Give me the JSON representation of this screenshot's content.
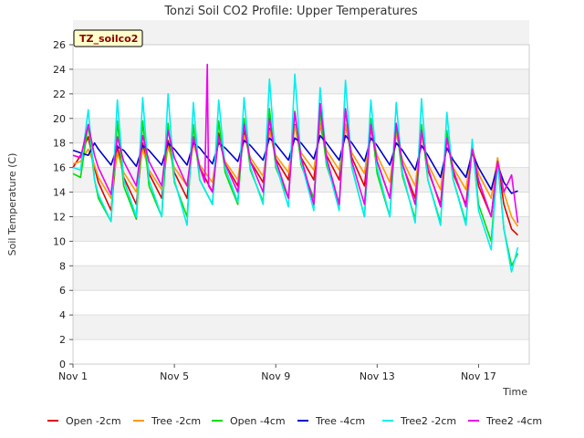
{
  "chart_data": {
    "type": "line",
    "title": "Tonzi Soil CO2 Profile: Upper Temperatures",
    "xlabel": "Time",
    "ylabel": "Soil Temperature (C)",
    "xlim": [
      0,
      18
    ],
    "ylim": [
      0,
      26
    ],
    "yticks": [
      0,
      2,
      4,
      6,
      8,
      10,
      12,
      14,
      16,
      18,
      20,
      22,
      24,
      26
    ],
    "xticks": [
      {
        "x": 0,
        "label": "Nov 1"
      },
      {
        "x": 4,
        "label": "Nov 5"
      },
      {
        "x": 8,
        "label": "Nov 9"
      },
      {
        "x": 12,
        "label": "Nov 13"
      },
      {
        "x": 16,
        "label": "Nov 17"
      }
    ],
    "x_unit": "days after Nov 1",
    "grid": true,
    "legend_position": "bottom",
    "site_tag": "TZ_soilco2",
    "series": [
      {
        "name": "Open -2cm",
        "color": "#e00000",
        "x": [
          0,
          0.3,
          0.6,
          0.85,
          1.0,
          1.5,
          1.75,
          2.0,
          2.5,
          2.75,
          3.0,
          3.5,
          3.75,
          4.0,
          4.5,
          4.75,
          5.0,
          5.5,
          5.75,
          6.0,
          6.5,
          6.75,
          7.0,
          7.5,
          7.75,
          8.0,
          8.5,
          8.75,
          9.0,
          9.5,
          9.75,
          10.0,
          10.5,
          10.75,
          11.0,
          11.5,
          11.75,
          12.0,
          12.5,
          12.75,
          13.0,
          13.5,
          13.75,
          14.0,
          14.5,
          14.75,
          15.0,
          15.5,
          15.75,
          16.0,
          16.5,
          16.75,
          17.0,
          17.3,
          17.55
        ],
        "y": [
          16.0,
          17.0,
          18.5,
          16.0,
          14.8,
          12.5,
          17.8,
          15.2,
          13.0,
          18.0,
          15.5,
          13.5,
          18.2,
          15.6,
          13.5,
          18.5,
          16.0,
          14.0,
          18.8,
          16.3,
          14.5,
          19.0,
          16.5,
          14.8,
          19.2,
          16.7,
          15.0,
          19.5,
          16.8,
          15.0,
          19.6,
          17.0,
          15.0,
          19.5,
          16.8,
          14.5,
          19.2,
          16.5,
          13.5,
          19.0,
          16.2,
          13.5,
          18.8,
          15.8,
          13.0,
          18.5,
          15.5,
          13.0,
          17.8,
          14.5,
          12.0,
          16.5,
          13.0,
          11.0,
          10.5
        ]
      },
      {
        "name": "Tree -2cm",
        "color": "#ff9900",
        "x": [
          0,
          0.3,
          0.6,
          0.85,
          1.0,
          1.5,
          1.75,
          2.0,
          2.5,
          2.75,
          3.0,
          3.5,
          3.75,
          4.0,
          4.5,
          4.75,
          5.0,
          5.5,
          5.75,
          6.0,
          6.5,
          6.75,
          7.0,
          7.5,
          7.75,
          8.0,
          8.5,
          8.75,
          9.0,
          9.5,
          9.75,
          10.0,
          10.5,
          10.75,
          11.0,
          11.5,
          11.75,
          12.0,
          12.5,
          12.75,
          13.0,
          13.5,
          13.75,
          14.0,
          14.5,
          14.75,
          15.0,
          15.5,
          15.75,
          16.0,
          16.5,
          16.75,
          17.0,
          17.3,
          17.55
        ],
        "y": [
          16.3,
          16.5,
          17.5,
          16.2,
          15.2,
          13.5,
          17.2,
          15.6,
          14.0,
          17.5,
          15.8,
          14.2,
          17.7,
          16.0,
          14.5,
          18.0,
          16.2,
          14.8,
          18.3,
          16.5,
          15.0,
          18.6,
          16.8,
          15.3,
          19.0,
          17.0,
          15.6,
          19.4,
          17.2,
          15.8,
          19.6,
          17.4,
          15.8,
          19.5,
          17.2,
          15.5,
          19.2,
          17.0,
          14.8,
          18.8,
          16.6,
          14.5,
          18.6,
          16.3,
          14.2,
          18.4,
          16.0,
          14.2,
          17.8,
          15.5,
          13.5,
          16.8,
          14.0,
          12.0,
          11.2
        ]
      },
      {
        "name": "Open -4cm",
        "color": "#00dd00",
        "x": [
          0,
          0.3,
          0.6,
          0.85,
          1.0,
          1.5,
          1.75,
          2.0,
          2.5,
          2.75,
          3.0,
          3.5,
          3.75,
          4.0,
          4.5,
          4.75,
          5.0,
          5.5,
          5.75,
          6.0,
          6.5,
          6.75,
          7.0,
          7.5,
          7.75,
          8.0,
          8.5,
          8.75,
          9.0,
          9.5,
          9.75,
          10.0,
          10.5,
          10.75,
          11.0,
          11.5,
          11.75,
          12.0,
          12.5,
          12.75,
          13.0,
          13.5,
          13.75,
          14.0,
          14.5,
          14.75,
          15.0,
          15.5,
          15.75,
          16.0,
          16.5,
          16.75,
          17.0,
          17.3,
          17.55
        ],
        "y": [
          15.5,
          15.2,
          19.5,
          15.0,
          13.5,
          11.6,
          19.8,
          14.5,
          11.8,
          19.8,
          14.5,
          12.0,
          19.6,
          14.8,
          12.0,
          19.5,
          15.0,
          13.0,
          19.8,
          15.6,
          13.0,
          20.0,
          15.8,
          13.2,
          20.8,
          16.0,
          13.5,
          20.6,
          16.2,
          13.5,
          20.5,
          16.2,
          13.0,
          20.8,
          16.0,
          12.0,
          20.0,
          15.5,
          12.0,
          19.5,
          15.3,
          11.8,
          19.5,
          15.0,
          11.5,
          19.0,
          15.0,
          11.5,
          18.0,
          13.0,
          10.0,
          16.5,
          11.0,
          8.0,
          9.0
        ]
      },
      {
        "name": "Tree -4cm",
        "color": "#0000cc",
        "x": [
          0,
          0.3,
          0.6,
          0.85,
          1.0,
          1.5,
          1.75,
          2.0,
          2.5,
          2.75,
          3.0,
          3.5,
          3.75,
          4.0,
          4.5,
          4.75,
          5.0,
          5.5,
          5.75,
          6.0,
          6.5,
          6.75,
          7.0,
          7.5,
          7.75,
          8.0,
          8.5,
          8.75,
          9.0,
          9.5,
          9.75,
          10.0,
          10.5,
          10.75,
          11.0,
          11.5,
          11.75,
          12.0,
          12.5,
          12.75,
          13.0,
          13.5,
          13.75,
          14.0,
          14.5,
          14.75,
          15.0,
          15.5,
          15.75,
          16.0,
          16.5,
          16.75,
          17.0,
          17.3,
          17.55
        ],
        "y": [
          17.4,
          17.2,
          17.0,
          18.0,
          17.5,
          16.2,
          17.7,
          17.4,
          16.1,
          17.8,
          17.4,
          16.2,
          18.0,
          17.5,
          16.2,
          18.0,
          17.6,
          16.3,
          18.0,
          17.6,
          16.5,
          18.2,
          17.8,
          16.6,
          18.4,
          17.9,
          16.6,
          18.4,
          18.0,
          16.7,
          18.6,
          18.0,
          16.6,
          18.6,
          18.0,
          16.5,
          18.4,
          17.8,
          16.2,
          18.0,
          17.4,
          15.8,
          17.8,
          17.0,
          15.2,
          17.6,
          16.6,
          15.2,
          17.2,
          16.0,
          14.2,
          16.2,
          14.8,
          13.9,
          14.1
        ]
      },
      {
        "name": "Tree2 -2cm",
        "color": "#00eeee",
        "x": [
          0,
          0.3,
          0.6,
          0.85,
          1.0,
          1.5,
          1.75,
          2.0,
          2.5,
          2.75,
          3.0,
          3.5,
          3.75,
          4.0,
          4.5,
          4.75,
          5.0,
          5.5,
          5.75,
          6.0,
          6.5,
          6.75,
          7.0,
          7.5,
          7.75,
          8.0,
          8.5,
          8.75,
          9.0,
          9.5,
          9.75,
          10.0,
          10.5,
          10.75,
          11.0,
          11.5,
          11.75,
          12.0,
          12.5,
          12.75,
          13.0,
          13.5,
          13.75,
          14.0,
          14.5,
          14.75,
          15.0,
          15.5,
          15.75,
          16.0,
          16.5,
          16.75,
          17.0,
          17.3,
          17.55
        ],
        "y": [
          16.0,
          15.8,
          20.7,
          15.0,
          13.8,
          11.6,
          21.5,
          15.0,
          12.0,
          21.7,
          15.0,
          12.0,
          22.0,
          15.0,
          11.3,
          21.3,
          15.0,
          13.0,
          21.5,
          16.0,
          13.2,
          21.7,
          16.0,
          13.0,
          23.2,
          16.3,
          12.8,
          23.6,
          16.5,
          12.5,
          22.5,
          16.5,
          12.5,
          23.1,
          16.0,
          12.0,
          21.5,
          16.0,
          12.0,
          21.3,
          15.6,
          11.5,
          21.6,
          15.0,
          11.3,
          20.5,
          15.0,
          11.3,
          18.3,
          12.5,
          9.3,
          16.5,
          11.0,
          7.5,
          9.5
        ]
      },
      {
        "name": "Tree2 -4cm",
        "color": "#ee00ee",
        "x": [
          0,
          0.3,
          0.6,
          0.85,
          1.0,
          1.5,
          1.75,
          2.0,
          2.5,
          2.75,
          3.0,
          3.5,
          3.75,
          4.0,
          4.5,
          4.75,
          5.0,
          5.2,
          5.3,
          5.35,
          5.5,
          5.75,
          6.0,
          6.5,
          6.75,
          7.0,
          7.5,
          7.75,
          8.0,
          8.5,
          8.75,
          9.0,
          9.5,
          9.75,
          10.0,
          10.5,
          10.75,
          11.0,
          11.5,
          11.75,
          12.0,
          12.5,
          12.75,
          13.0,
          13.5,
          13.75,
          14.0,
          14.5,
          14.75,
          15.0,
          15.5,
          15.75,
          16.0,
          16.5,
          16.75,
          17.0,
          17.3,
          17.55
        ],
        "y": [
          17.0,
          16.8,
          19.5,
          17.0,
          16.0,
          13.8,
          18.5,
          16.5,
          14.5,
          18.6,
          16.5,
          14.5,
          19.0,
          16.8,
          14.5,
          18.5,
          16.0,
          14.8,
          24.4,
          14.5,
          14.0,
          18.5,
          16.3,
          14.0,
          19.5,
          16.5,
          14.0,
          20.0,
          16.6,
          13.5,
          20.5,
          16.8,
          13.0,
          21.2,
          16.8,
          13.0,
          20.8,
          16.5,
          13.0,
          19.5,
          16.5,
          13.5,
          19.6,
          16.3,
          13.0,
          19.0,
          16.0,
          12.8,
          18.4,
          15.8,
          12.8,
          17.5,
          15.0,
          12.0,
          16.5,
          14.0,
          15.4,
          11.5
        ]
      }
    ]
  }
}
